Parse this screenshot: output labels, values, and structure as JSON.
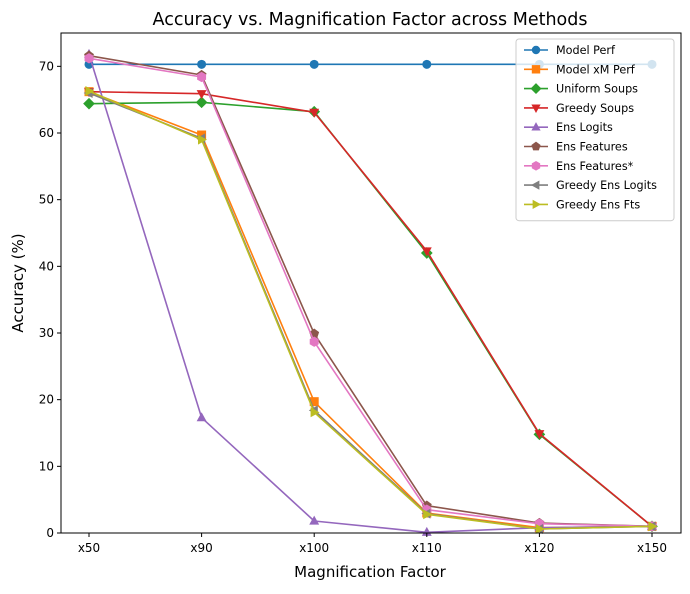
{
  "chart_data": {
    "type": "line",
    "title": "Accuracy vs. Magnification Factor across Methods",
    "xlabel": "Magnification Factor",
    "ylabel": "Accuracy (%)",
    "categories": [
      "x50",
      "x90",
      "x100",
      "x110",
      "x120",
      "x150"
    ],
    "ylim": [
      0,
      75
    ],
    "yticks": [
      0,
      10,
      20,
      30,
      40,
      50,
      60,
      70
    ],
    "grid": false,
    "legend_position": "top-right",
    "series": [
      {
        "name": "Model Perf",
        "color": "#1f77b4",
        "marker": "circle",
        "values": [
          70.3,
          70.3,
          70.3,
          70.3,
          70.3,
          70.3
        ]
      },
      {
        "name": "Model xM Perf",
        "color": "#ff7f0e",
        "marker": "square",
        "values": [
          66.2,
          59.7,
          19.7,
          3.0,
          0.8,
          1.0
        ]
      },
      {
        "name": "Uniform Soups",
        "color": "#2ca02c",
        "marker": "diamond",
        "values": [
          64.4,
          64.6,
          63.2,
          42.0,
          14.8,
          1.0
        ]
      },
      {
        "name": "Greedy Soups",
        "color": "#d62728",
        "marker": "triangle-down",
        "values": [
          66.2,
          65.9,
          63.1,
          42.3,
          14.9,
          1.0
        ]
      },
      {
        "name": "Ens Logits",
        "color": "#9467bd",
        "marker": "triangle-up",
        "values": [
          71.8,
          17.3,
          1.8,
          0.1,
          0.8,
          1.0
        ]
      },
      {
        "name": "Ens Features",
        "color": "#8c564b",
        "marker": "pentagon",
        "values": [
          71.6,
          68.7,
          29.9,
          4.1,
          1.5,
          1.0
        ]
      },
      {
        "name": "Ens Features*",
        "color": "#e377c2",
        "marker": "hexagon",
        "values": [
          71.2,
          68.4,
          28.7,
          3.5,
          1.4,
          1.0
        ]
      },
      {
        "name": "Greedy Ens Logits",
        "color": "#7f7f7f",
        "marker": "triangle-left",
        "values": [
          66.0,
          59.2,
          18.4,
          2.9,
          0.6,
          1.0
        ]
      },
      {
        "name": "Greedy Ens Fts",
        "color": "#bcbd22",
        "marker": "triangle-right",
        "values": [
          66.3,
          59.0,
          18.1,
          2.8,
          0.6,
          1.0
        ]
      }
    ]
  }
}
